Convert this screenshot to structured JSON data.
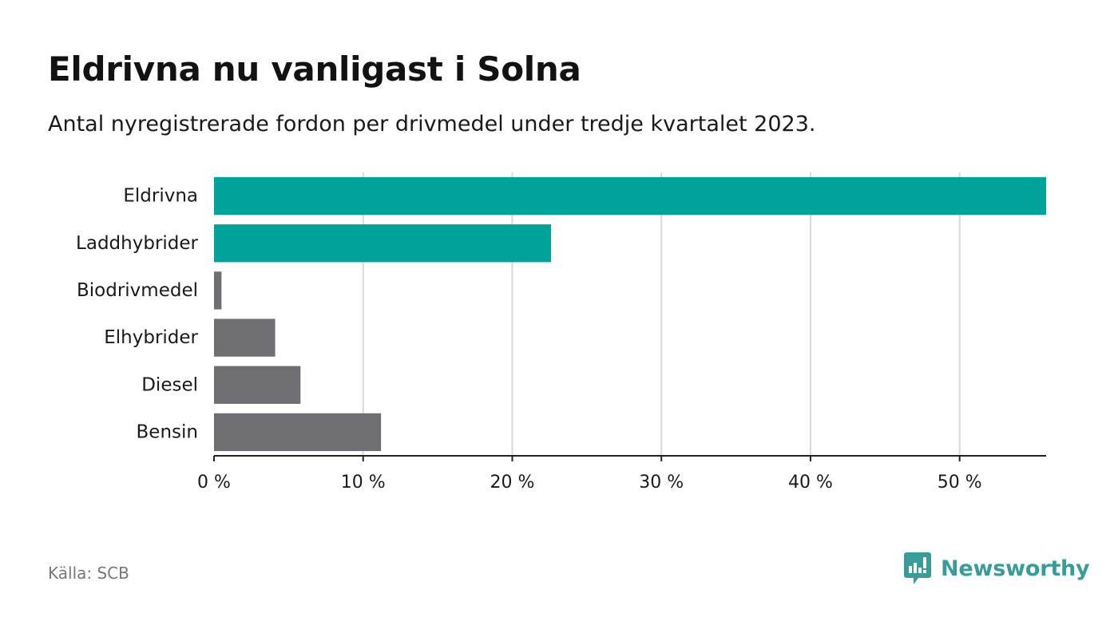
{
  "title": "Eldrivna nu vanligast i Solna",
  "subtitle": "Antal nyregistrerade fordon per drivmedel under tredje kvartalet 2023.",
  "source": "Källa: SCB",
  "brand": {
    "name": "Newsworthy",
    "icon": "newsworthy-logo-icon",
    "color": "#3a9c98"
  },
  "colors": {
    "highlight": "#00a29a",
    "default": "#6e6e73",
    "grid": "#d9d9d9",
    "axis": "#222222"
  },
  "chart_data": {
    "type": "bar",
    "orientation": "horizontal",
    "categories": [
      "Eldrivna",
      "Laddhybrider",
      "Biodrivmedel",
      "Elhybrider",
      "Diesel",
      "Bensin"
    ],
    "values": [
      55.8,
      22.6,
      0.5,
      4.1,
      5.8,
      11.2
    ],
    "highlighted": [
      true,
      true,
      false,
      false,
      false,
      false
    ],
    "xlim": [
      0,
      55.8
    ],
    "xticks": [
      0,
      10,
      20,
      30,
      40,
      50
    ],
    "xtick_labels": [
      "0 %",
      "10 %",
      "20 %",
      "30 %",
      "40 %",
      "50 %"
    ],
    "grid": true,
    "unit": "%"
  }
}
